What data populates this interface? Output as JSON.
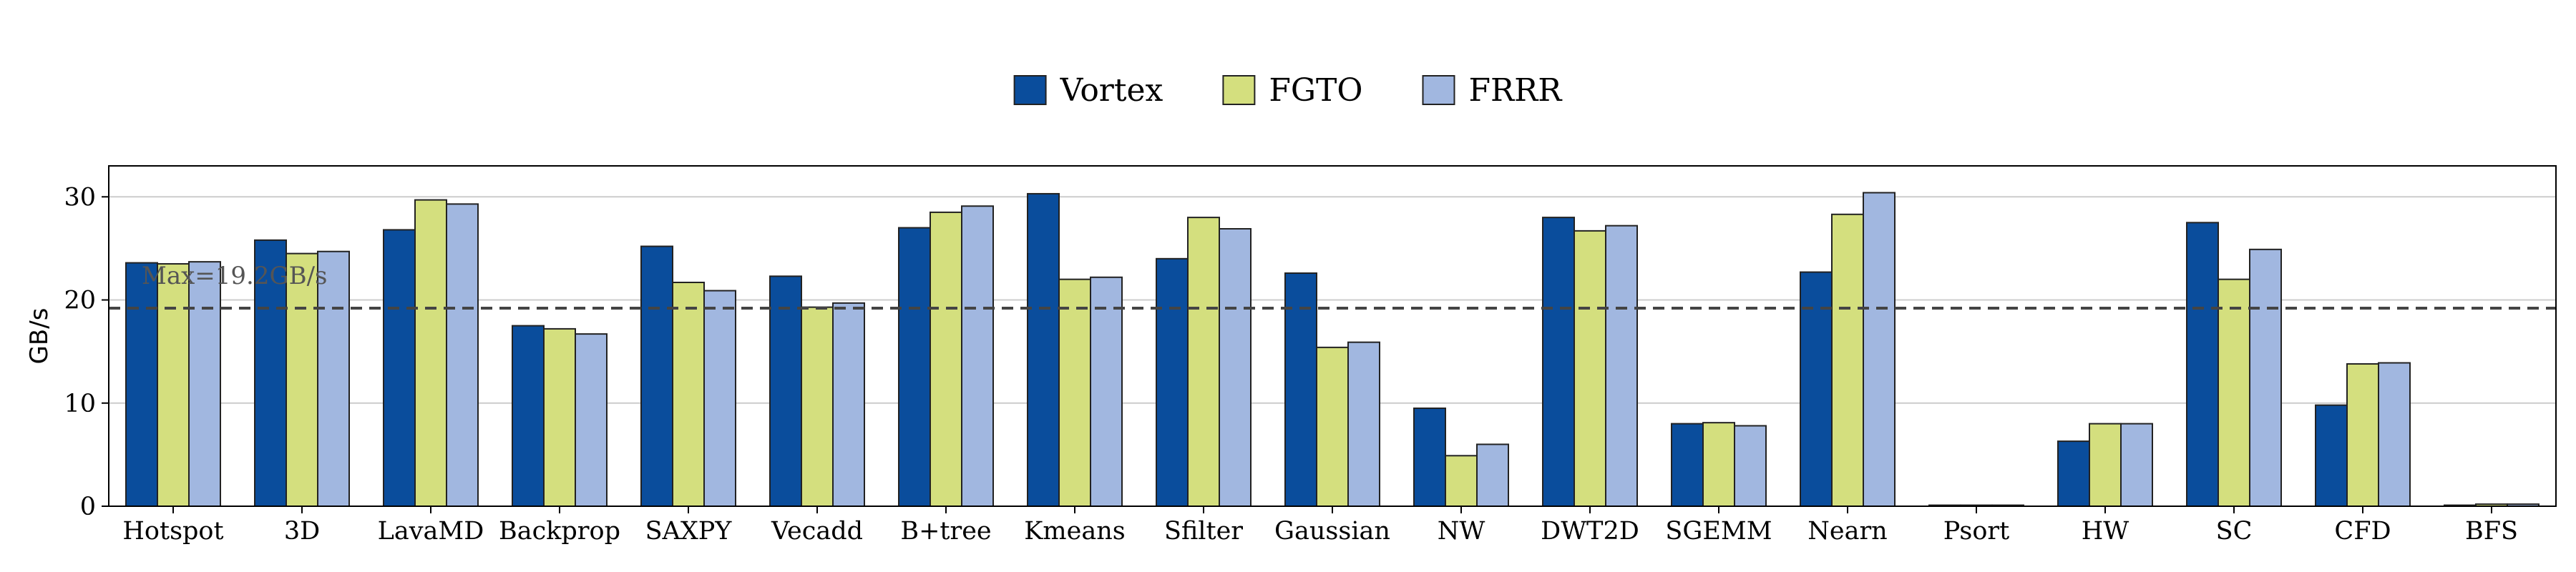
{
  "chart_data": {
    "type": "bar",
    "categories": [
      "Hotspot",
      "3D",
      "LavaMD",
      "Backprop",
      "SAXPY",
      "Vecadd",
      "B+tree",
      "Kmeans",
      "Sfilter",
      "Gaussian",
      "NW",
      "DWT2D",
      "SGEMM",
      "Nearn",
      "Psort",
      "HW",
      "SC",
      "CFD",
      "BFS"
    ],
    "series": [
      {
        "name": "Vortex",
        "color": "#0a4d9c",
        "values": [
          23.6,
          25.8,
          26.8,
          17.5,
          25.2,
          22.3,
          27.0,
          30.3,
          24.0,
          22.6,
          9.5,
          28.0,
          8.0,
          22.7,
          0.1,
          6.3,
          27.5,
          9.8,
          0.1
        ]
      },
      {
        "name": "FGTO",
        "color": "#d4df7e",
        "values": [
          23.5,
          24.5,
          29.7,
          17.2,
          21.7,
          19.3,
          28.5,
          22.0,
          28.0,
          15.4,
          4.9,
          26.7,
          8.1,
          28.3,
          0.1,
          8.0,
          22.0,
          13.8,
          0.2
        ]
      },
      {
        "name": "FRRR",
        "color": "#a1b7e0",
        "values": [
          23.7,
          24.7,
          29.3,
          16.7,
          20.9,
          19.7,
          29.1,
          22.2,
          26.9,
          15.9,
          6.0,
          27.2,
          7.8,
          30.4,
          0.1,
          8.0,
          24.9,
          13.9,
          0.2
        ]
      }
    ],
    "ylabel": "GB/s",
    "xlabel": "",
    "ylim": [
      0,
      33
    ],
    "yticks": [
      0,
      10,
      20,
      30
    ],
    "grid": true,
    "legend_placement": "top-center",
    "reference_line": {
      "value": 19.2,
      "label": "Max=19.2GB/s",
      "style": "dashed",
      "color": "#444444"
    }
  }
}
